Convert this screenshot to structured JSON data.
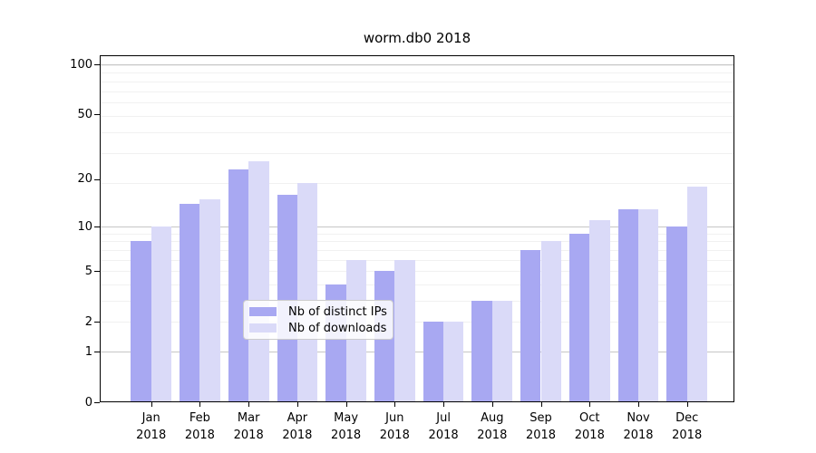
{
  "title": "worm.db0 2018",
  "colors": {
    "bar_distinct_ips": "#a8a8f2",
    "bar_downloads": "#dadaf8",
    "major_gridline": "#c6c6c6",
    "minor_gridline": "#f1f1f1",
    "axis": "#000000",
    "background": "#ffffff"
  },
  "chart_data": {
    "type": "bar",
    "title": "worm.db0 2018",
    "categories": [
      "Jan 2018",
      "Feb 2018",
      "Mar 2018",
      "Apr 2018",
      "May 2018",
      "Jun 2018",
      "Jul 2018",
      "Aug 2018",
      "Sep 2018",
      "Oct 2018",
      "Nov 2018",
      "Dec 2018"
    ],
    "series": [
      {
        "name": "Nb of distinct IPs",
        "color": "#a8a8f2",
        "values": [
          8,
          14,
          23,
          16,
          4,
          5,
          2,
          3,
          7,
          9,
          13,
          10
        ]
      },
      {
        "name": "Nb of downloads",
        "color": "#dadaf8",
        "values": [
          10,
          15,
          26,
          19,
          6,
          6,
          2,
          3,
          8,
          11,
          13,
          18
        ]
      }
    ],
    "yscale": "log1p",
    "ylim": [
      0,
      113
    ],
    "yticks": [
      0,
      1,
      2,
      5,
      10,
      20,
      50,
      100
    ],
    "ytick_labels": [
      "0",
      "1",
      "2",
      "5",
      "10",
      "20",
      "50",
      "100"
    ],
    "major_gridline_values": [
      1,
      10,
      100
    ],
    "grid": true,
    "legend_position": "lower center",
    "xlabel": "",
    "ylabel": ""
  }
}
